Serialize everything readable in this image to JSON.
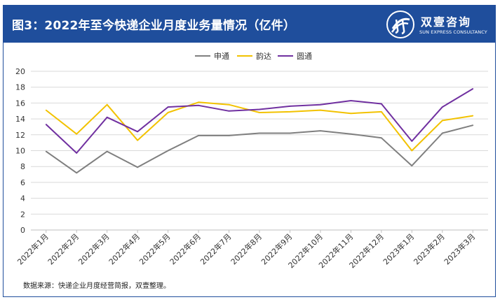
{
  "header": {
    "title": "图3：2022年至今快递企业月度业务量情况（亿件）",
    "logo_name": "双壹咨询",
    "logo_sub": "SUN EXPRESS CONSULTANCY"
  },
  "source": "数据来源：快递企业月度经营简报，双壹整理。",
  "colors": {
    "frame": "#1f4e9c",
    "header": "#1f4e9c"
  },
  "chart_data": {
    "type": "line",
    "title": "2022年至今快递企业月度业务量情况（亿件）",
    "xlabel": "",
    "ylabel": "",
    "ylim": [
      0,
      20
    ],
    "yticks": [
      "0",
      "2",
      "4",
      "6",
      "8",
      "10",
      "12",
      "14",
      "16",
      "18",
      "20"
    ],
    "grid": true,
    "legend_position": "top-center",
    "categories": [
      "2022年1月",
      "2022年2月",
      "2022年3月",
      "2022年4月",
      "2022年5月",
      "2022年6月",
      "2022年7月",
      "2022年8月",
      "2022年9月",
      "2022年10月",
      "2022年11月",
      "2022年12月",
      "2023年1月",
      "2023年2月",
      "2023年3月"
    ],
    "series": [
      {
        "name": "申通",
        "color": "#7f7f7f",
        "values": [
          9.9,
          7.2,
          9.9,
          7.9,
          10.0,
          11.9,
          11.9,
          12.2,
          12.2,
          12.5,
          12.1,
          11.6,
          8.1,
          12.2,
          13.2
        ]
      },
      {
        "name": "韵达",
        "color": "#f2c200",
        "values": [
          15.1,
          12.1,
          15.8,
          11.3,
          14.8,
          16.1,
          15.8,
          14.8,
          14.9,
          15.1,
          14.7,
          14.9,
          10.0,
          13.8,
          14.4
        ]
      },
      {
        "name": "圆通",
        "color": "#7030a0",
        "values": [
          13.3,
          9.7,
          14.2,
          12.4,
          15.5,
          15.7,
          15.0,
          15.2,
          15.6,
          15.8,
          16.3,
          15.9,
          11.2,
          15.5,
          17.8
        ]
      }
    ]
  }
}
